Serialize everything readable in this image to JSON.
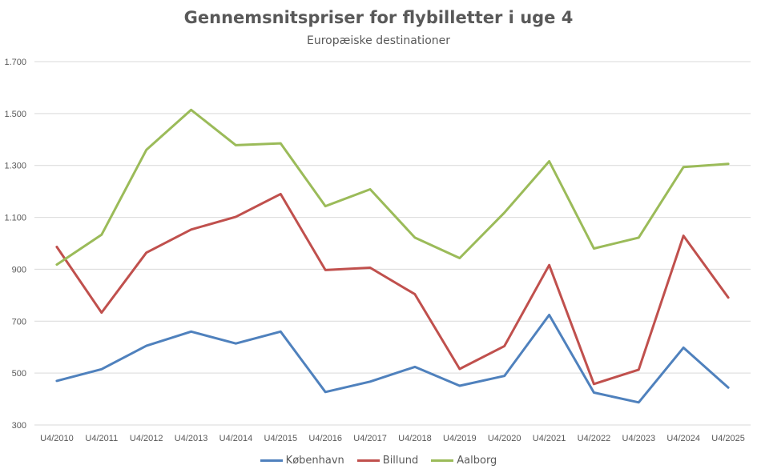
{
  "chart_data": {
    "type": "line",
    "title": "Gennemsnitspriser for flybilletter i uge 4",
    "subtitle": "Europæiske destinationer",
    "categories": [
      "U4/2010",
      "U4/2011",
      "U4/2012",
      "U4/2013",
      "U4/2014",
      "U4/2015",
      "U4/2016",
      "U4/2017",
      "U4/2018",
      "U4/2019",
      "U4/2020",
      "U4/2021",
      "U4/2022",
      "U4/2023",
      "U4/2024",
      "U4/2025"
    ],
    "ylim": [
      300,
      1700
    ],
    "yticks": [
      300,
      500,
      700,
      900,
      1100,
      1300,
      1500,
      1700
    ],
    "ytick_labels": [
      "300",
      "500",
      "700",
      "900",
      "1.100",
      "1.300",
      "1.500",
      "1.700"
    ],
    "grid": true,
    "legend_position": "bottom",
    "series": [
      {
        "name": "København",
        "color": "#4F81BD",
        "values": [
          470,
          515,
          605,
          660,
          614,
          660,
          427,
          467,
          524,
          451,
          489,
          724,
          425,
          387,
          598,
          444
        ]
      },
      {
        "name": "Billund",
        "color": "#C0504D",
        "values": [
          986,
          733,
          964,
          1053,
          1102,
          1190,
          897,
          906,
          804,
          516,
          604,
          916,
          458,
          513,
          1029,
          791
        ]
      },
      {
        "name": "Aalborg",
        "color": "#9BBB59",
        "values": [
          918,
          1033,
          1360,
          1514,
          1378,
          1385,
          1143,
          1208,
          1022,
          943,
          1118,
          1316,
          980,
          1022,
          1294,
          1306
        ]
      }
    ]
  }
}
